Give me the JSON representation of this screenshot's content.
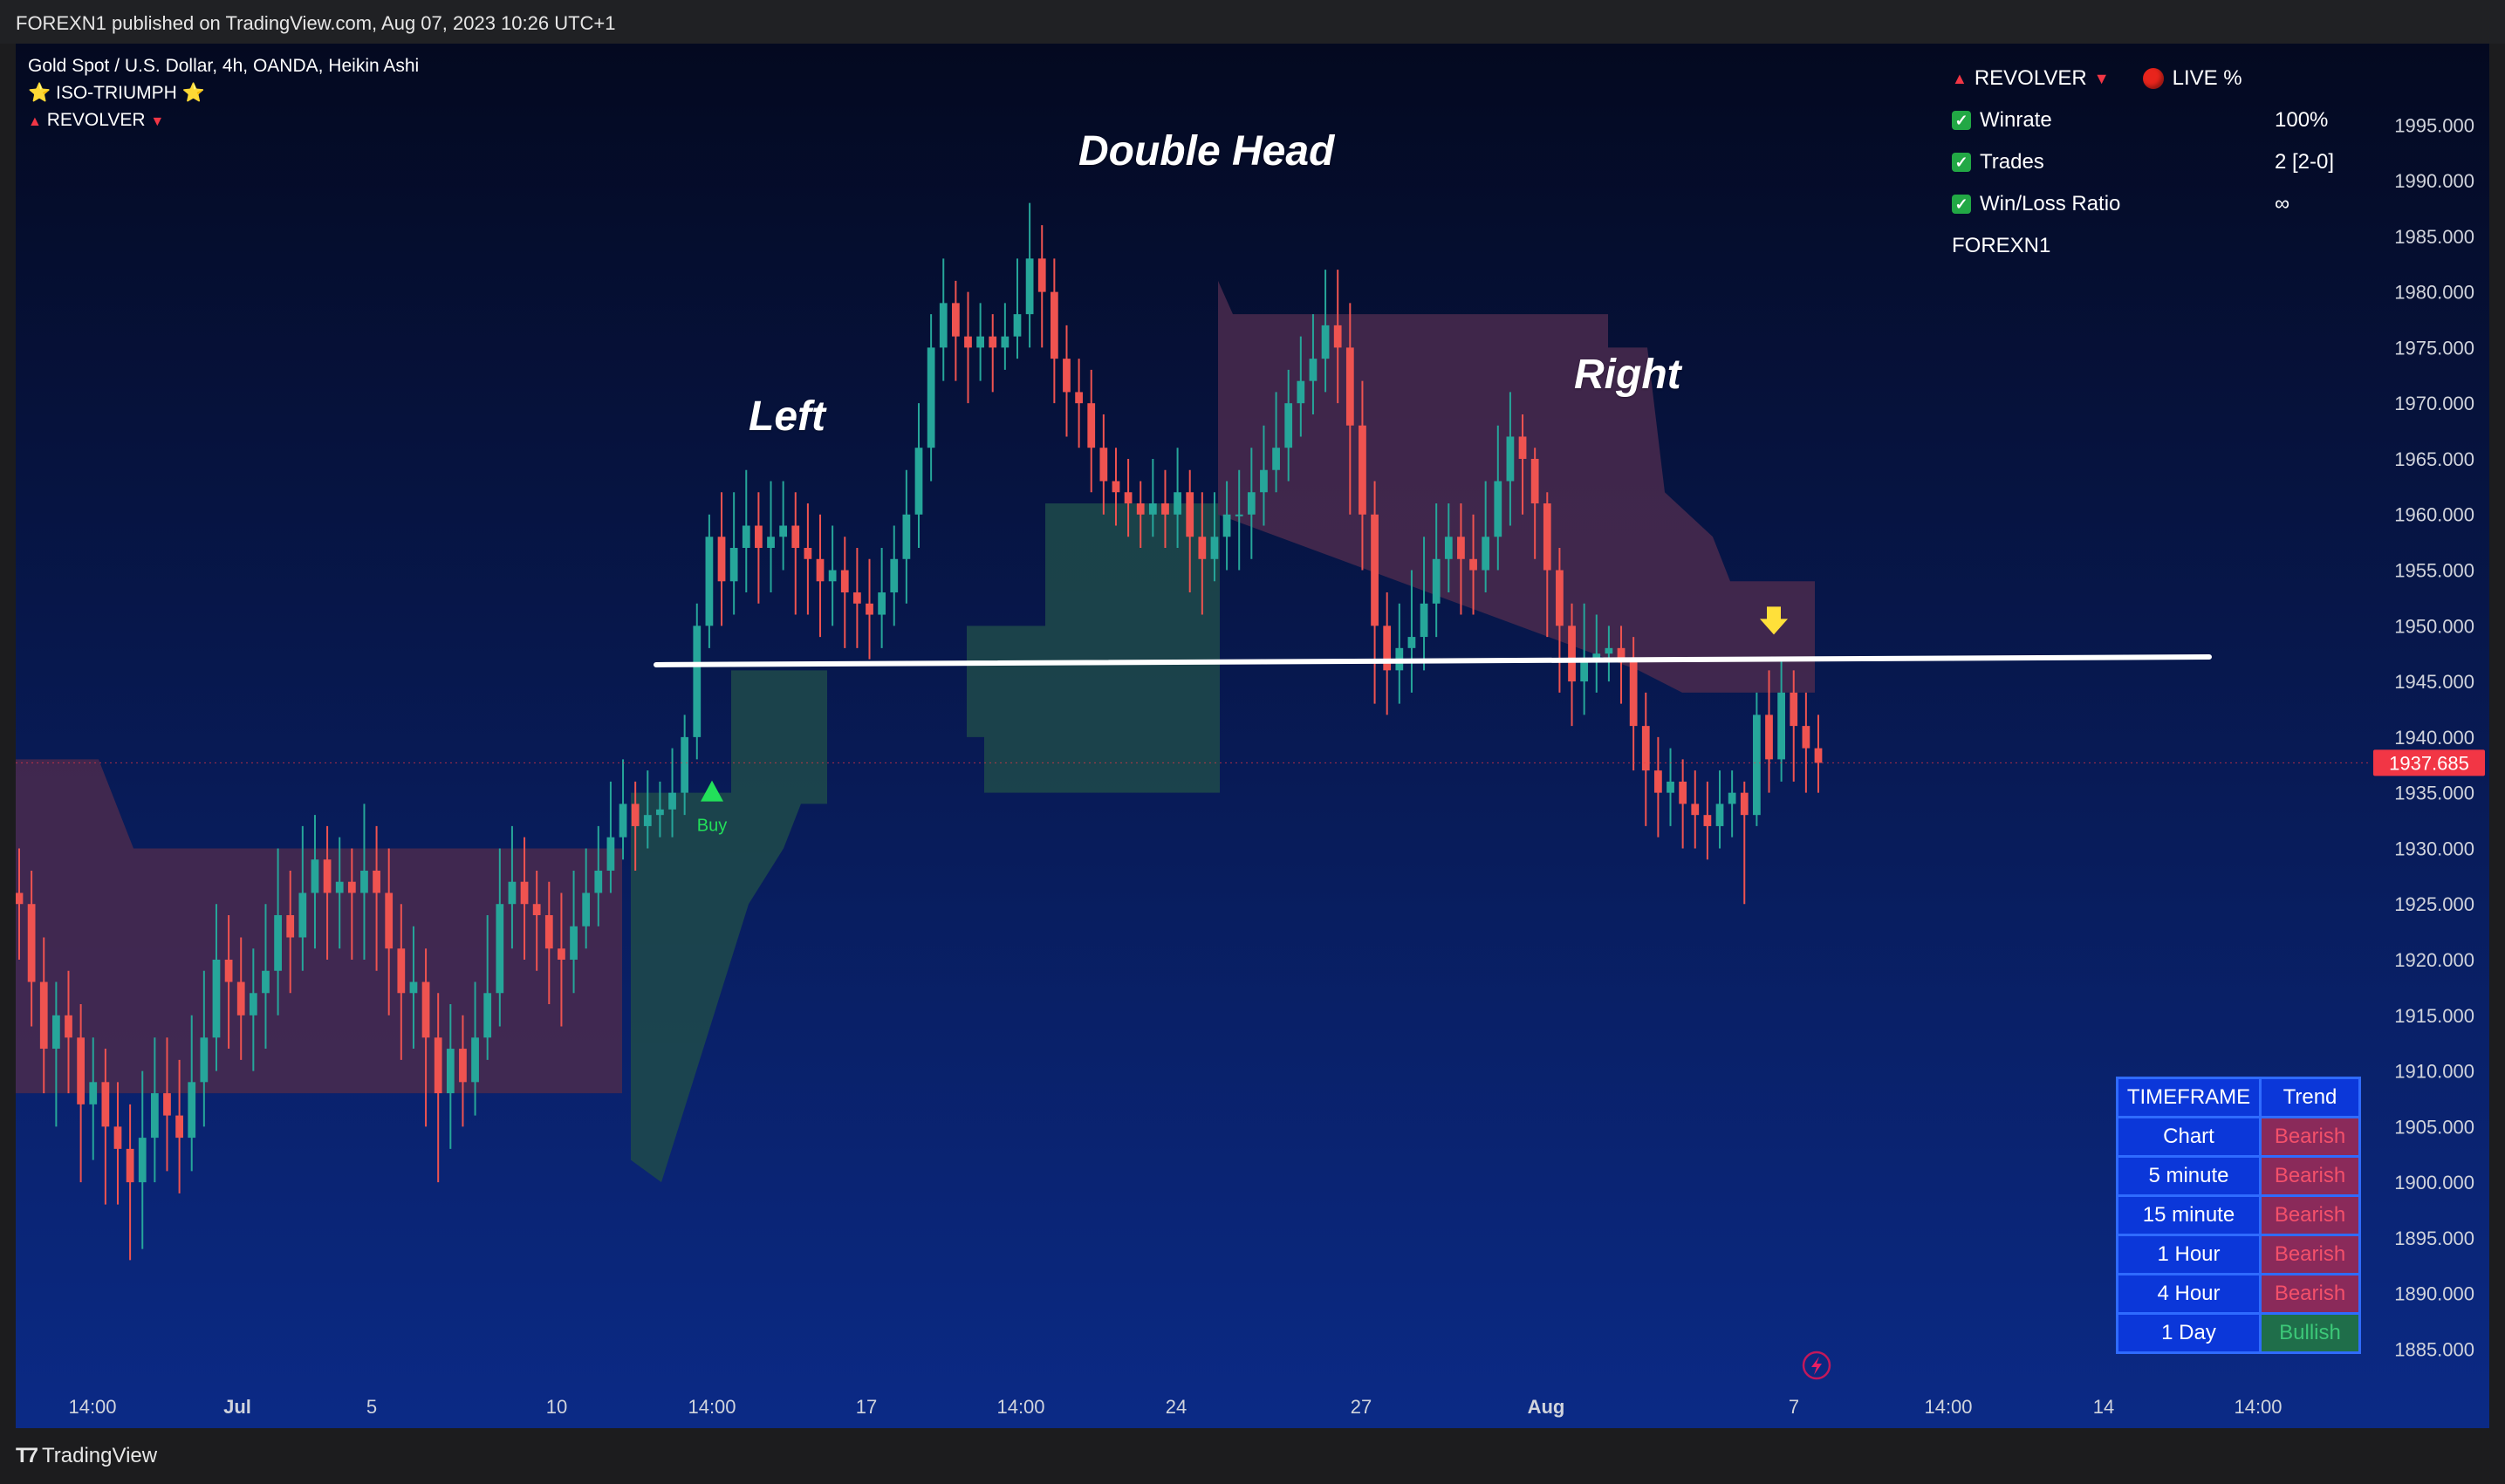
{
  "header": {
    "published": "FOREXN1 published on TradingView.com, Aug 07, 2023 10:26 UTC+1"
  },
  "legend": {
    "symbol": "Gold Spot / U.S. Dollar, 4h, OANDA, Heikin Ashi",
    "indicator1": "⭐ ISO-TRIUMPH ⭐",
    "indicator2": "REVOLVER"
  },
  "stats_panel": {
    "title": "REVOLVER",
    "live": "LIVE %",
    "rows": [
      {
        "label": "Winrate",
        "value": "100%"
      },
      {
        "label": "Trades",
        "value": "2 [2-0]"
      },
      {
        "label": "Win/Loss Ratio",
        "value": "∞"
      }
    ],
    "author": "FOREXN1"
  },
  "annotations": {
    "left": "Left",
    "head": "Double Head",
    "right": "Right",
    "buy": "Buy"
  },
  "trend_table": {
    "headers": [
      "TIMEFRAME",
      "Trend"
    ],
    "rows": [
      {
        "tf": "Chart",
        "trend": "Bearish"
      },
      {
        "tf": "5 minute",
        "trend": "Bearish"
      },
      {
        "tf": "15 minute",
        "trend": "Bearish"
      },
      {
        "tf": "1 Hour",
        "trend": "Bearish"
      },
      {
        "tf": "4 Hour",
        "trend": "Bearish"
      },
      {
        "tf": "1 Day",
        "trend": "Bullish"
      }
    ]
  },
  "footer": {
    "brand": "TradingView"
  },
  "colors": {
    "bg_top": "#040920",
    "bg_bottom": "#0b2a86",
    "up": "#26a69a",
    "down": "#ef5350",
    "bull_zone": "#1e4a4a",
    "bear_zone": "#4a2a4e",
    "price_tag": "#f23645",
    "neckline": "#ffffff",
    "arrow": "#ffe03a",
    "buy": "#22e05a"
  },
  "chart_data": {
    "type": "candlestick",
    "style": "Heikin Ashi",
    "symbol": "XAUUSD",
    "timeframe": "4h",
    "ylim": [
      1883,
      1998
    ],
    "y_ticks": [
      1995,
      1990,
      1985,
      1980,
      1975,
      1970,
      1965,
      1960,
      1955,
      1950,
      1945,
      1940,
      1935,
      1930,
      1925,
      1920,
      1915,
      1910,
      1905,
      1900,
      1895,
      1890,
      1885
    ],
    "y_tick_labels": [
      "1995.000",
      "1990.000",
      "1985.000",
      "1980.000",
      "1975.000",
      "1970.000",
      "1965.000",
      "1960.000",
      "1955.000",
      "1950.000",
      "1945.000",
      "1940.000",
      "1935.000",
      "1930.000",
      "1925.000",
      "1920.000",
      "1915.000",
      "1910.000",
      "1905.000",
      "1900.000",
      "1895.000",
      "1890.000",
      "1885.000"
    ],
    "x_labels": [
      "14:00",
      "Jul",
      "5",
      "10",
      "14:00",
      "17",
      "14:00",
      "24",
      "27",
      "Aug",
      "7",
      "14:00",
      "14",
      "14:00"
    ],
    "last_price": 1937.685,
    "last_price_label": "1937.685",
    "neckline": [
      1946.5,
      1947.2
    ],
    "buy_signal_price": 1935,
    "sell_arrow_price": 1950,
    "candles": [
      [
        1926,
        1925,
        1930,
        1920
      ],
      [
        1925,
        1918,
        1928,
        1914
      ],
      [
        1918,
        1912,
        1922,
        1908
      ],
      [
        1912,
        1915,
        1918,
        1905
      ],
      [
        1915,
        1913,
        1919,
        1908
      ],
      [
        1913,
        1907,
        1916,
        1900
      ],
      [
        1907,
        1909,
        1913,
        1902
      ],
      [
        1909,
        1905,
        1912,
        1898
      ],
      [
        1905,
        1903,
        1909,
        1898
      ],
      [
        1903,
        1900,
        1907,
        1893
      ],
      [
        1900,
        1904,
        1910,
        1894
      ],
      [
        1904,
        1908,
        1913,
        1900
      ],
      [
        1908,
        1906,
        1913,
        1901
      ],
      [
        1906,
        1904,
        1911,
        1899
      ],
      [
        1904,
        1909,
        1915,
        1901
      ],
      [
        1909,
        1913,
        1919,
        1905
      ],
      [
        1913,
        1920,
        1925,
        1910
      ],
      [
        1920,
        1918,
        1924,
        1912
      ],
      [
        1918,
        1915,
        1922,
        1911
      ],
      [
        1915,
        1917,
        1921,
        1910
      ],
      [
        1917,
        1919,
        1925,
        1912
      ],
      [
        1919,
        1924,
        1930,
        1915
      ],
      [
        1924,
        1922,
        1928,
        1917
      ],
      [
        1922,
        1926,
        1932,
        1919
      ],
      [
        1926,
        1929,
        1933,
        1921
      ],
      [
        1929,
        1926,
        1932,
        1920
      ],
      [
        1926,
        1927,
        1931,
        1921
      ],
      [
        1927,
        1926,
        1930,
        1920
      ],
      [
        1926,
        1928,
        1934,
        1920
      ],
      [
        1928,
        1926,
        1932,
        1919
      ],
      [
        1926,
        1921,
        1930,
        1915
      ],
      [
        1921,
        1917,
        1925,
        1911
      ],
      [
        1917,
        1918,
        1923,
        1912
      ],
      [
        1918,
        1913,
        1921,
        1905
      ],
      [
        1913,
        1908,
        1917,
        1900
      ],
      [
        1908,
        1912,
        1916,
        1903
      ],
      [
        1912,
        1909,
        1915,
        1905
      ],
      [
        1909,
        1913,
        1918,
        1906
      ],
      [
        1913,
        1917,
        1924,
        1911
      ],
      [
        1917,
        1925,
        1930,
        1914
      ],
      [
        1925,
        1927,
        1932,
        1921
      ],
      [
        1927,
        1925,
        1931,
        1920
      ],
      [
        1925,
        1924,
        1928,
        1919
      ],
      [
        1924,
        1921,
        1927,
        1916
      ],
      [
        1921,
        1920,
        1926,
        1914
      ],
      [
        1920,
        1923,
        1928,
        1917
      ],
      [
        1923,
        1926,
        1930,
        1921
      ],
      [
        1926,
        1928,
        1932,
        1923
      ],
      [
        1928,
        1931,
        1936,
        1926
      ],
      [
        1931,
        1934,
        1938,
        1929
      ],
      [
        1934,
        1932,
        1936,
        1928
      ],
      [
        1932,
        1933,
        1937,
        1930
      ],
      [
        1933,
        1933.5,
        1936,
        1931
      ],
      [
        1933.5,
        1935,
        1939,
        1931
      ],
      [
        1935,
        1940,
        1942,
        1933
      ],
      [
        1940,
        1950,
        1952,
        1938
      ],
      [
        1950,
        1958,
        1960,
        1948
      ],
      [
        1958,
        1954,
        1962,
        1950
      ],
      [
        1954,
        1957,
        1962,
        1951
      ],
      [
        1957,
        1959,
        1964,
        1953
      ],
      [
        1959,
        1957,
        1962,
        1952
      ],
      [
        1957,
        1958,
        1963,
        1953
      ],
      [
        1958,
        1959,
        1963,
        1955
      ],
      [
        1959,
        1957,
        1962,
        1951
      ],
      [
        1957,
        1956,
        1961,
        1951
      ],
      [
        1956,
        1954,
        1960,
        1949
      ],
      [
        1954,
        1955,
        1959,
        1950
      ],
      [
        1955,
        1953,
        1958,
        1948
      ],
      [
        1953,
        1952,
        1957,
        1948
      ],
      [
        1952,
        1951,
        1956,
        1947
      ],
      [
        1951,
        1953,
        1957,
        1948
      ],
      [
        1953,
        1956,
        1959,
        1950
      ],
      [
        1956,
        1960,
        1964,
        1952
      ],
      [
        1960,
        1966,
        1970,
        1957
      ],
      [
        1966,
        1975,
        1978,
        1963
      ],
      [
        1975,
        1979,
        1983,
        1972
      ],
      [
        1979,
        1976,
        1981,
        1972
      ],
      [
        1976,
        1975,
        1980,
        1970
      ],
      [
        1975,
        1976,
        1979,
        1972
      ],
      [
        1976,
        1975,
        1978,
        1971
      ],
      [
        1975,
        1976,
        1979,
        1973
      ],
      [
        1976,
        1978,
        1983,
        1974
      ],
      [
        1978,
        1983,
        1988,
        1975
      ],
      [
        1983,
        1980,
        1986,
        1975
      ],
      [
        1980,
        1974,
        1983,
        1970
      ],
      [
        1974,
        1971,
        1977,
        1967
      ],
      [
        1971,
        1970,
        1974,
        1966
      ],
      [
        1970,
        1966,
        1973,
        1962
      ],
      [
        1966,
        1963,
        1969,
        1960
      ],
      [
        1963,
        1962,
        1966,
        1959
      ],
      [
        1962,
        1961,
        1965,
        1958
      ],
      [
        1961,
        1960,
        1963,
        1957
      ],
      [
        1960,
        1961,
        1965,
        1958
      ],
      [
        1961,
        1960,
        1964,
        1957
      ],
      [
        1960,
        1962,
        1966,
        1957
      ],
      [
        1962,
        1958,
        1964,
        1953
      ],
      [
        1958,
        1956,
        1962,
        1951
      ],
      [
        1956,
        1958,
        1962,
        1954
      ],
      [
        1958,
        1960,
        1963,
        1955
      ],
      [
        1960,
        1960,
        1964,
        1955
      ],
      [
        1960,
        1962,
        1966,
        1956
      ],
      [
        1962,
        1964,
        1968,
        1959
      ],
      [
        1964,
        1966,
        1971,
        1962
      ],
      [
        1966,
        1970,
        1973,
        1963
      ],
      [
        1970,
        1972,
        1976,
        1967
      ],
      [
        1972,
        1974,
        1978,
        1969
      ],
      [
        1974,
        1977,
        1982,
        1971
      ],
      [
        1977,
        1975,
        1982,
        1970
      ],
      [
        1975,
        1968,
        1979,
        1960
      ],
      [
        1968,
        1960,
        1972,
        1955
      ],
      [
        1960,
        1950,
        1963,
        1943
      ],
      [
        1950,
        1946,
        1953,
        1942
      ],
      [
        1946,
        1948,
        1952,
        1943
      ],
      [
        1948,
        1949,
        1955,
        1944
      ],
      [
        1949,
        1952,
        1958,
        1946
      ],
      [
        1952,
        1956,
        1961,
        1949
      ],
      [
        1956,
        1958,
        1961,
        1953
      ],
      [
        1958,
        1956,
        1961,
        1951
      ],
      [
        1956,
        1955,
        1960,
        1951
      ],
      [
        1955,
        1958,
        1963,
        1953
      ],
      [
        1958,
        1963,
        1968,
        1955
      ],
      [
        1963,
        1967,
        1971,
        1959
      ],
      [
        1967,
        1965,
        1969,
        1960
      ],
      [
        1965,
        1961,
        1966,
        1956
      ],
      [
        1961,
        1955,
        1962,
        1949
      ],
      [
        1955,
        1950,
        1957,
        1944
      ],
      [
        1950,
        1945,
        1952,
        1941
      ],
      [
        1945,
        1947,
        1952,
        1942
      ],
      [
        1947,
        1947.5,
        1951,
        1944
      ],
      [
        1947.5,
        1948,
        1950,
        1945
      ],
      [
        1948,
        1947,
        1950,
        1943
      ],
      [
        1947,
        1941,
        1949,
        1937
      ],
      [
        1941,
        1937,
        1944,
        1932
      ],
      [
        1937,
        1935,
        1940,
        1931
      ],
      [
        1935,
        1936,
        1939,
        1932
      ],
      [
        1936,
        1934,
        1938,
        1930
      ],
      [
        1934,
        1933,
        1937,
        1930
      ],
      [
        1933,
        1932,
        1936,
        1929
      ],
      [
        1932,
        1934,
        1937,
        1930
      ],
      [
        1934,
        1935,
        1937,
        1931
      ],
      [
        1935,
        1933,
        1936,
        1925
      ],
      [
        1933,
        1942,
        1944,
        1932
      ],
      [
        1942,
        1938,
        1946,
        1935
      ],
      [
        1938,
        1944,
        1947,
        1936
      ],
      [
        1944,
        1941,
        1946,
        1936
      ],
      [
        1941,
        1939,
        1944,
        1935
      ],
      [
        1939,
        1937.685,
        1942,
        1935
      ]
    ]
  }
}
